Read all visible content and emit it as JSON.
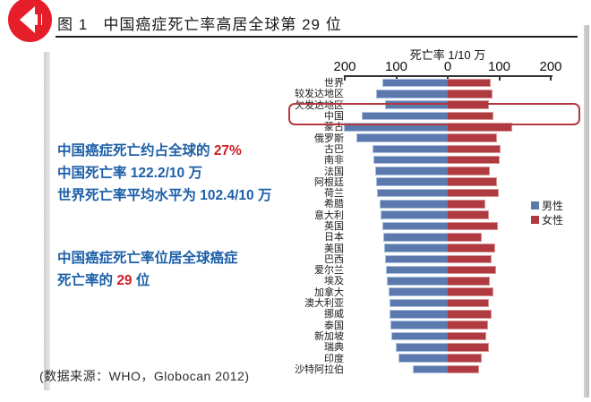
{
  "header": {
    "figure_label": "图 1",
    "title": "中国癌症死亡率高居全球第 29 位"
  },
  "annotations": {
    "line1_prefix": "中国癌症死亡约占全球的 ",
    "line1_highlight": "27%",
    "line2": "中国死亡率 122.2/10 万",
    "line3": "世界死亡率平均水平为 102.4/10 万",
    "line4": "中国癌症死亡率位居全球癌症",
    "line5_prefix": "死亡率的 ",
    "line5_highlight": "29",
    "line5_suffix": " 位",
    "source": "(数据来源：WHO，Globocan 2012)"
  },
  "chart_data": {
    "type": "bar",
    "subtype": "diverging-horizontal (population-pyramid style)",
    "axis_title": "死亡率 1/10 万",
    "tick_labels": [
      "200",
      "100",
      "0",
      "100",
      "200"
    ],
    "axis_range_each_side": 200,
    "grid": false,
    "legend_position": "right",
    "highlighted_category": "中国",
    "categories": [
      "世界",
      "较发达地区",
      "欠发达地区",
      "中国",
      "蒙古",
      "俄罗斯",
      "古巴",
      "南非",
      "法国",
      "阿根廷",
      "荷兰",
      "希腊",
      "意大利",
      "英国",
      "日本",
      "美国",
      "巴西",
      "爱尔兰",
      "埃及",
      "加拿大",
      "澳大利亚",
      "挪威",
      "泰国",
      "新加坡",
      "瑞典",
      "印度",
      "沙特阿拉伯"
    ],
    "series": [
      {
        "name": "男性",
        "direction": "left",
        "color": "#5c79ae",
        "values": [
          126,
          138,
          121,
          166,
          200,
          176,
          145,
          143,
          141,
          138,
          136,
          132,
          129,
          126,
          124,
          123,
          121,
          120,
          118,
          115,
          113,
          112,
          111,
          109,
          101,
          96,
          68
        ]
      },
      {
        "name": "女性",
        "direction": "right",
        "color": "#af3a3f",
        "values": [
          83,
          86,
          80,
          89,
          125,
          95,
          102,
          100,
          81,
          95,
          99,
          73,
          80,
          97,
          66,
          91,
          85,
          93,
          82,
          89,
          80,
          85,
          78,
          74,
          80,
          66,
          60
        ]
      }
    ]
  },
  "colors": {
    "male_bar": "#5c79ae",
    "female_bar": "#af3a3f",
    "annotation_blue": "#1c5fa8",
    "highlight_red": "#cc2027",
    "badge_red": "#e51e2a",
    "highlight_box_border": "#b13a41"
  }
}
